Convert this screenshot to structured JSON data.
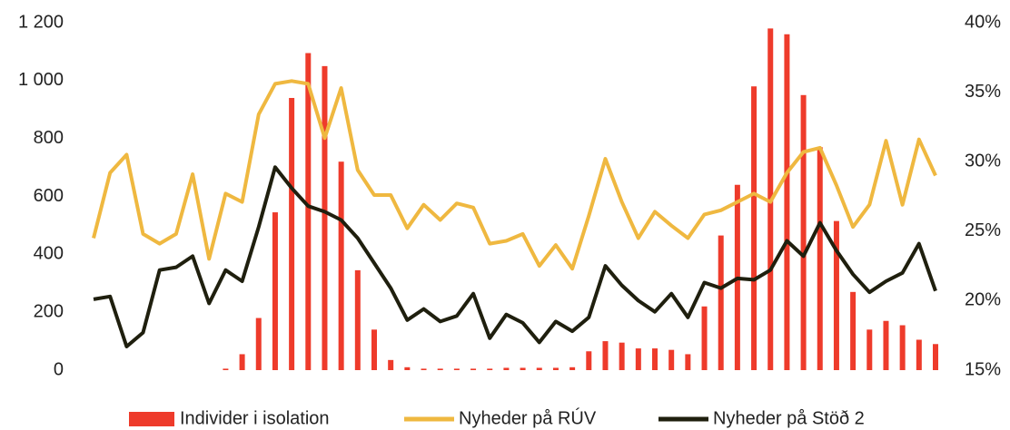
{
  "chart_data": {
    "type": "bar_line",
    "categories": [
      null,
      null,
      null,
      null,
      null,
      null,
      null,
      null,
      null,
      null,
      null,
      null,
      null,
      null,
      null,
      null,
      null,
      null,
      null,
      null,
      null,
      null,
      null,
      null,
      null,
      null,
      null,
      null,
      null,
      null,
      null,
      null,
      null,
      null,
      null,
      null,
      null,
      null,
      null,
      null,
      null,
      null,
      null,
      null,
      null,
      null,
      null,
      null,
      null,
      null,
      null,
      null
    ],
    "series": [
      {
        "name": "Individer i isolation",
        "type": "bar",
        "color": "#ee3b2b",
        "axis": "y",
        "values": [
          0,
          0,
          0,
          0,
          0,
          0,
          0,
          0,
          5,
          55,
          180,
          545,
          940,
          1095,
          1050,
          720,
          345,
          140,
          35,
          10,
          5,
          5,
          5,
          5,
          5,
          8,
          8,
          8,
          8,
          10,
          65,
          100,
          95,
          75,
          75,
          70,
          55,
          220,
          465,
          640,
          980,
          1180,
          1160,
          950,
          770,
          515,
          270,
          140,
          170,
          155,
          105,
          90
        ]
      },
      {
        "name": "Nyheder på RÚV",
        "type": "line",
        "color": "#efb840",
        "axis": "y2",
        "values": [
          24.5,
          29.2,
          30.5,
          24.8,
          24.1,
          24.8,
          29.1,
          23.0,
          27.7,
          27.1,
          33.4,
          35.6,
          35.8,
          35.6,
          31.7,
          35.3,
          29.4,
          27.6,
          27.6,
          25.2,
          26.9,
          25.8,
          27.0,
          26.7,
          24.1,
          24.3,
          24.8,
          22.5,
          24.0,
          22.3,
          26.1,
          30.2,
          27.1,
          24.5,
          26.4,
          25.4,
          24.5,
          26.2,
          26.5,
          27.1,
          27.7,
          27.1,
          29.2,
          30.7,
          31.0,
          28.3,
          25.3,
          26.9,
          31.5,
          26.9,
          31.6,
          29.0
        ]
      },
      {
        "name": "Nyheder på Stöð 2",
        "type": "line",
        "color": "#1f1f0e",
        "axis": "y2",
        "values": [
          20.1,
          20.3,
          16.7,
          17.7,
          22.2,
          22.4,
          23.2,
          19.8,
          22.2,
          21.4,
          25.3,
          29.6,
          28.1,
          26.8,
          26.4,
          25.8,
          24.5,
          22.7,
          20.9,
          18.6,
          19.4,
          18.5,
          18.9,
          20.5,
          17.3,
          19.0,
          18.4,
          17.0,
          18.5,
          17.8,
          18.8,
          22.5,
          21.1,
          20.0,
          19.2,
          20.5,
          18.8,
          21.3,
          20.9,
          21.6,
          21.5,
          22.2,
          24.3,
          23.2,
          25.6,
          23.6,
          21.9,
          20.6,
          21.4,
          22.0,
          24.1,
          20.7
        ]
      }
    ],
    "ylim": [
      0,
      1200
    ],
    "yticks": [
      0,
      200,
      400,
      600,
      800,
      {
        "value": 1000,
        "label": "1 000"
      },
      {
        "value": 1200,
        "label": "1 200"
      }
    ],
    "y2lim": [
      15,
      40
    ],
    "y2ticks": [
      {
        "value": 15,
        "label": "15%"
      },
      {
        "value": 20,
        "label": "20%"
      },
      {
        "value": 25,
        "label": "25%"
      },
      {
        "value": 30,
        "label": "30%"
      },
      {
        "value": 35,
        "label": "35%"
      },
      {
        "value": 40,
        "label": "40%"
      }
    ],
    "legend": "bottom"
  }
}
